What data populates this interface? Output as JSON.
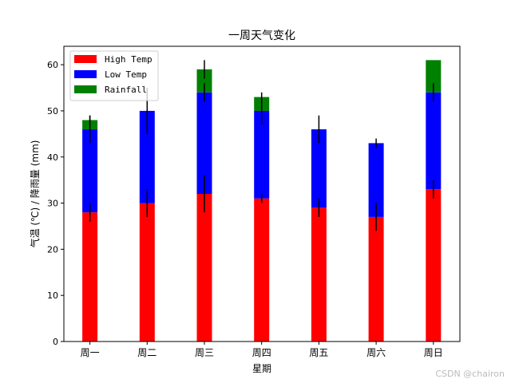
{
  "chart_data": {
    "type": "bar",
    "stacked": true,
    "title": "一周天气变化",
    "xlabel": "星期",
    "ylabel": "气温 (℃) / 降雨量 (mm)",
    "categories": [
      "周一",
      "周二",
      "周三",
      "周四",
      "周五",
      "周六",
      "周日"
    ],
    "ylim": [
      0,
      64
    ],
    "yticks": [
      0,
      10,
      20,
      30,
      40,
      50,
      60
    ],
    "legend_position": "top-left",
    "grid": false,
    "series": [
      {
        "name": "High Temp",
        "color": "#ff0000",
        "values": [
          28,
          30,
          32,
          31,
          29,
          27,
          33
        ],
        "errors": [
          2,
          3,
          4,
          1,
          2,
          3,
          2
        ]
      },
      {
        "name": "Low Temp",
        "color": "#0000ff",
        "values": [
          18,
          20,
          22,
          19,
          17,
          16,
          21
        ],
        "errors": [
          3,
          5,
          2,
          3,
          3,
          1,
          2
        ]
      },
      {
        "name": "Rainfall",
        "color": "#008000",
        "values": [
          2,
          0,
          5,
          3,
          0,
          0,
          7
        ],
        "errors": [
          1,
          0,
          2,
          1,
          0,
          0,
          0
        ]
      }
    ]
  },
  "watermark": "CSDN @chairon"
}
